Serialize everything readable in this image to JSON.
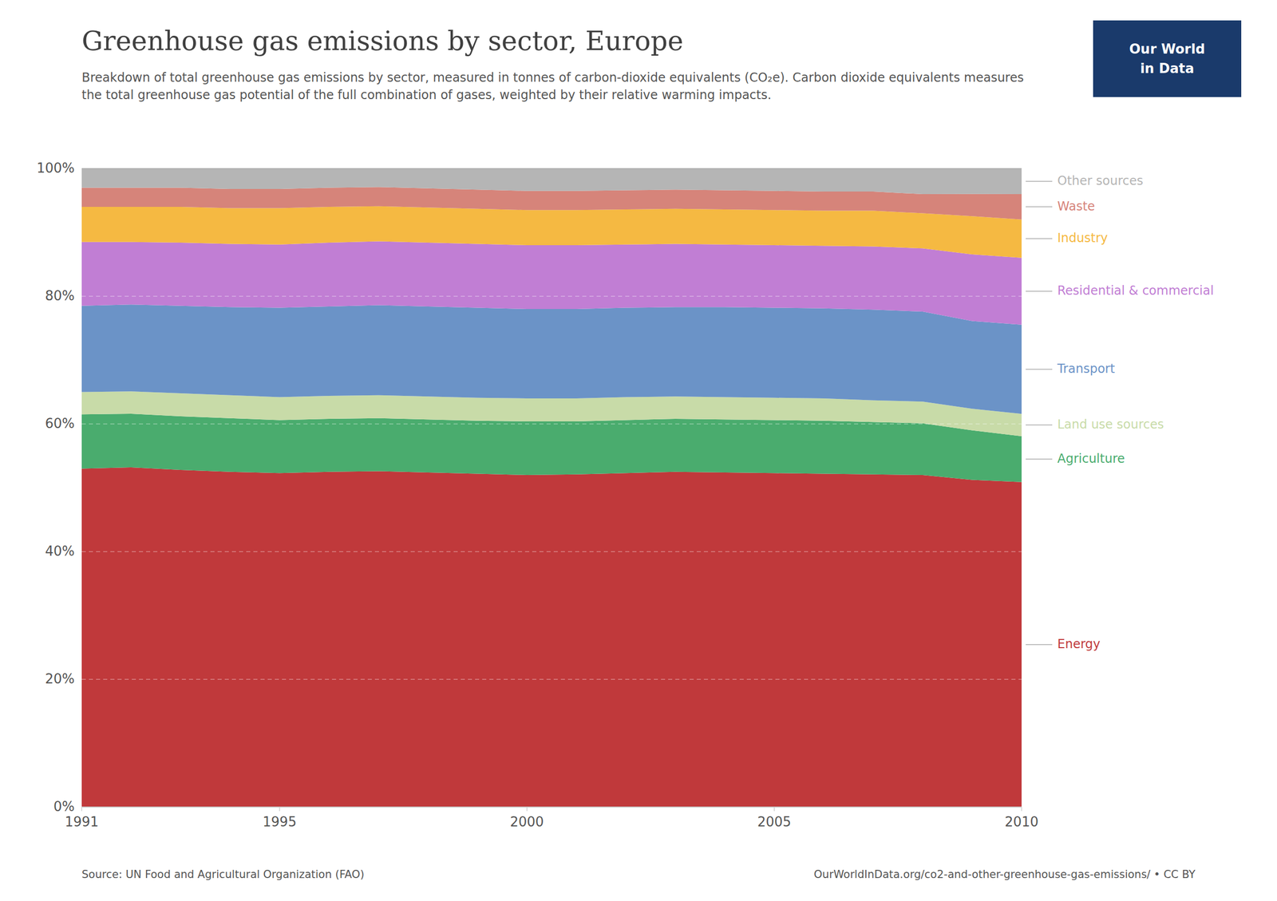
{
  "chart_data": {
    "type": "area",
    "stacked": true,
    "title": "Greenhouse gas emissions by sector, Europe",
    "subtitle": "Breakdown of total greenhouse gas emissions by sector, measured in tonnes of carbon-dioxide equivalents (CO₂e). Carbon dioxide equivalents measures the total greenhouse gas potential of the full combination of gases, weighted by their relative warming impacts.",
    "source": "Source: UN Food and Agricultural Organization (FAO)",
    "credit": "OurWorldInData.org/co2-and-other-greenhouse-gas-emissions/  •  CC BY",
    "logo": [
      "Our World",
      "in Data"
    ],
    "x": [
      1991,
      1992,
      1993,
      1994,
      1995,
      1996,
      1997,
      1998,
      1999,
      2000,
      2001,
      2002,
      2003,
      2004,
      2005,
      2006,
      2007,
      2008,
      2009,
      2010
    ],
    "series": [
      {
        "name": "Energy",
        "color": "#c0393b",
        "values": [
          53.0,
          53.2,
          52.8,
          52.5,
          52.3,
          52.5,
          52.6,
          52.4,
          52.2,
          52.0,
          52.1,
          52.3,
          52.5,
          52.4,
          52.3,
          52.2,
          52.1,
          52.0,
          51.2438,
          50.8982
        ]
      },
      {
        "name": "Agriculture",
        "color": "#4aac6e",
        "values": [
          8.5,
          8.4,
          8.4,
          8.4,
          8.3,
          8.3,
          8.3,
          8.3,
          8.3,
          8.4,
          8.3,
          8.3,
          8.3,
          8.3,
          8.3,
          8.3,
          8.2,
          8.1,
          7.7612,
          7.1856
        ]
      },
      {
        "name": "Land use sources",
        "color": "#c8dba8",
        "values": [
          3.5,
          3.5,
          3.6,
          3.6,
          3.6,
          3.6,
          3.6,
          3.6,
          3.6,
          3.6,
          3.6,
          3.6,
          3.5,
          3.5,
          3.5,
          3.5,
          3.4,
          3.4,
          3.3831,
          3.493
        ]
      },
      {
        "name": "Transport",
        "color": "#6b93c7",
        "values": [
          13.5,
          13.6,
          13.7,
          13.8,
          14.0,
          14.0,
          14.1,
          14.1,
          14.1,
          14.0,
          14.0,
          14.0,
          14.0,
          14.1,
          14.1,
          14.1,
          14.2,
          14.1,
          13.7313,
          13.9721
        ]
      },
      {
        "name": "Residential & commercial",
        "color": "#c17ed4",
        "values": [
          10.0,
          9.8,
          9.9,
          9.9,
          9.9,
          10.0,
          10.0,
          10.0,
          10.0,
          10.0,
          10.0,
          9.9,
          9.9,
          9.8,
          9.8,
          9.8,
          9.9,
          9.9,
          10.4478,
          10.479
        ]
      },
      {
        "name": "Industry",
        "color": "#f5b942",
        "values": [
          5.5,
          5.5,
          5.6,
          5.6,
          5.7,
          5.6,
          5.5,
          5.5,
          5.5,
          5.5,
          5.5,
          5.5,
          5.5,
          5.5,
          5.5,
          5.5,
          5.6,
          5.5,
          5.9701,
          5.988
        ]
      },
      {
        "name": "Waste",
        "color": "#d6847a",
        "values": [
          3.0,
          3.0,
          3.0,
          3.0,
          3.0,
          3.0,
          3.0,
          3.0,
          3.0,
          3.0,
          3.0,
          3.0,
          3.0,
          3.0,
          3.0,
          3.0,
          3.0,
          3.0,
          3.4826,
          3.992
        ]
      },
      {
        "name": "Other sources",
        "color": "#b5b5b5",
        "values": [
          3.0,
          3.0,
          3.0,
          3.2,
          3.2,
          3.0,
          2.9,
          3.1,
          3.3,
          3.5,
          3.5,
          3.4,
          3.3,
          3.4,
          3.5,
          3.6,
          3.6,
          4.0,
          3.9801,
          3.992
        ]
      }
    ],
    "xlim": [
      1991,
      2010
    ],
    "ylim": [
      0,
      100
    ],
    "xticks": [
      1991,
      1995,
      2000,
      2005,
      2010
    ],
    "yticks": [
      {
        "value": 0,
        "label": "0%"
      },
      {
        "value": 20,
        "label": "20%"
      },
      {
        "value": 40,
        "label": "40%"
      },
      {
        "value": 60,
        "label": "60%"
      },
      {
        "value": 80,
        "label": "80%"
      },
      {
        "value": 100,
        "label": "100%"
      }
    ],
    "grid": true
  }
}
